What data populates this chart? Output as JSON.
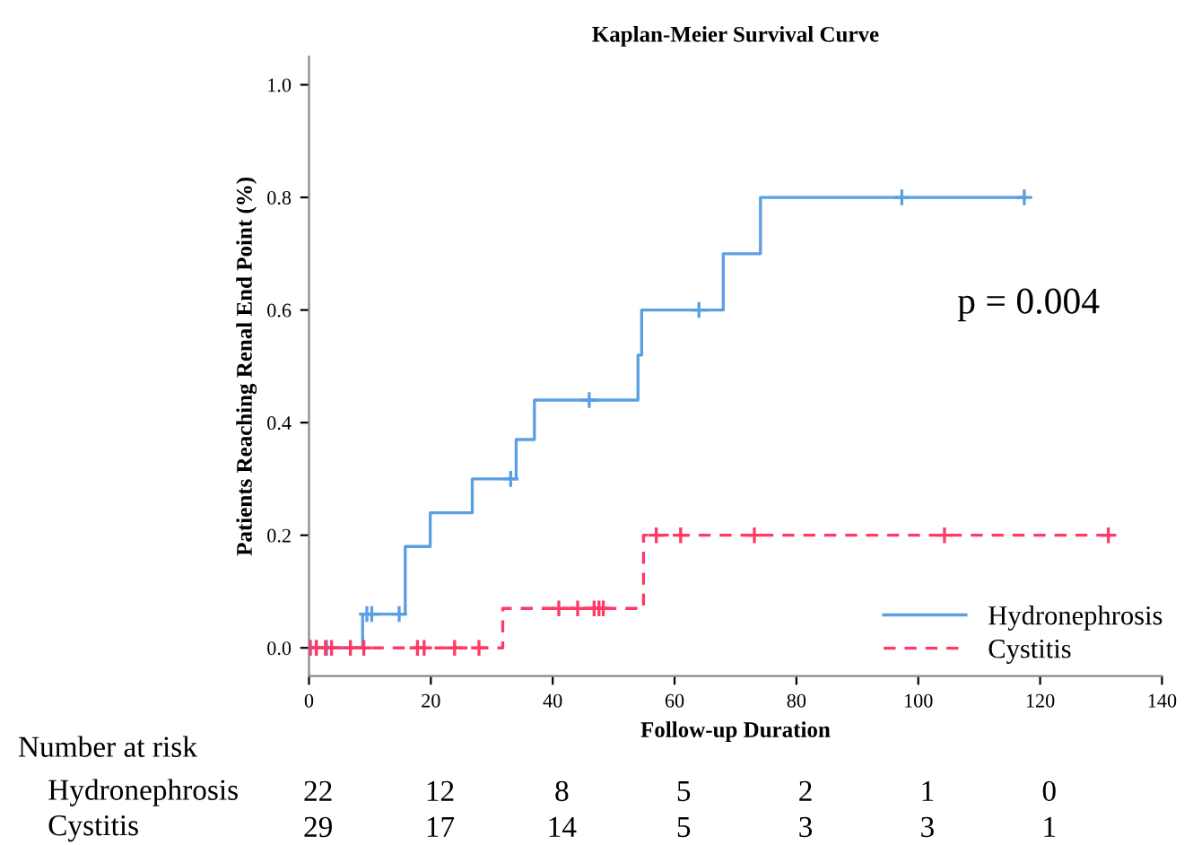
{
  "chart_data": {
    "type": "step",
    "title": "Kaplan-Meier Survival Curve",
    "xlabel": "Follow-up Duration",
    "ylabel": "Patients Reaching Renal End Point (%)",
    "xlim": [
      0,
      140
    ],
    "ylim": [
      -0.05,
      1.05
    ],
    "xticks": [
      0,
      20,
      40,
      60,
      80,
      100,
      120,
      140
    ],
    "yticks": [
      {
        "value": 0,
        "label": "0.0"
      },
      {
        "value": 0.2,
        "label": "0.2"
      },
      {
        "value": 0.4,
        "label": "0.4"
      },
      {
        "value": 0.6,
        "label": "0.6"
      },
      {
        "value": 0.8,
        "label": "0.8"
      },
      {
        "value": 1.0,
        "label": "1.0"
      }
    ],
    "grid": false,
    "legend": "bottom right",
    "series": [
      {
        "name": "Hydronephrosis",
        "color": "#5b9fe3",
        "line_style": "solid",
        "marker": "none",
        "x": [
          0,
          8.8,
          15.8,
          19.9,
          26.8,
          34,
          37,
          54,
          54.6,
          68,
          74.1,
          117.4
        ],
        "values": [
          0,
          0.06,
          0.18,
          0.24,
          0.3,
          0.37,
          0.44,
          0.52,
          0.6,
          0.7,
          0.8,
          0.8
        ]
      },
      {
        "type": "scatter",
        "color": "#5b9fe3",
        "marker": "cross",
        "x": [
          0.2,
          1.2,
          2.9,
          9.5,
          10.3,
          14.8,
          33.1,
          46,
          64,
          97.3,
          117.4
        ],
        "values": [
          0,
          0,
          0,
          0.06,
          0.06,
          0.06,
          0.3,
          0.44,
          0.6,
          0.8,
          0.8
        ]
      },
      {
        "name": "Cystitis",
        "color": "#ff3a66",
        "line_style": "dashed",
        "marker": "none",
        "x": [
          0,
          31.8,
          54.9,
          131.2
        ],
        "values": [
          0,
          0.07,
          0.2,
          0.2
        ]
      },
      {
        "type": "scatter",
        "color": "#ff3a66",
        "marker": "cross",
        "x": [
          0.2,
          1.2,
          2.7,
          3.7,
          6.8,
          9.0,
          17.8,
          18.9,
          23.9,
          27.9,
          41,
          44.1,
          46.8,
          47.6,
          48.3,
          57,
          61,
          73.1,
          104.3,
          131.2
        ],
        "values": [
          0,
          0,
          0,
          0,
          0,
          0,
          0,
          0,
          0,
          0,
          0.07,
          0.07,
          0.07,
          0.07,
          0.07,
          0.2,
          0.2,
          0.2,
          0.2,
          0.2
        ]
      }
    ],
    "annotations": [
      "p = 0.004",
      "Number at risk",
      "Hydronephrosis",
      "22",
      "12",
      "8",
      "5",
      "2",
      "1",
      "0",
      "Cystitis",
      "29",
      "17",
      "14",
      "5",
      "3",
      "3",
      "1"
    ]
  }
}
